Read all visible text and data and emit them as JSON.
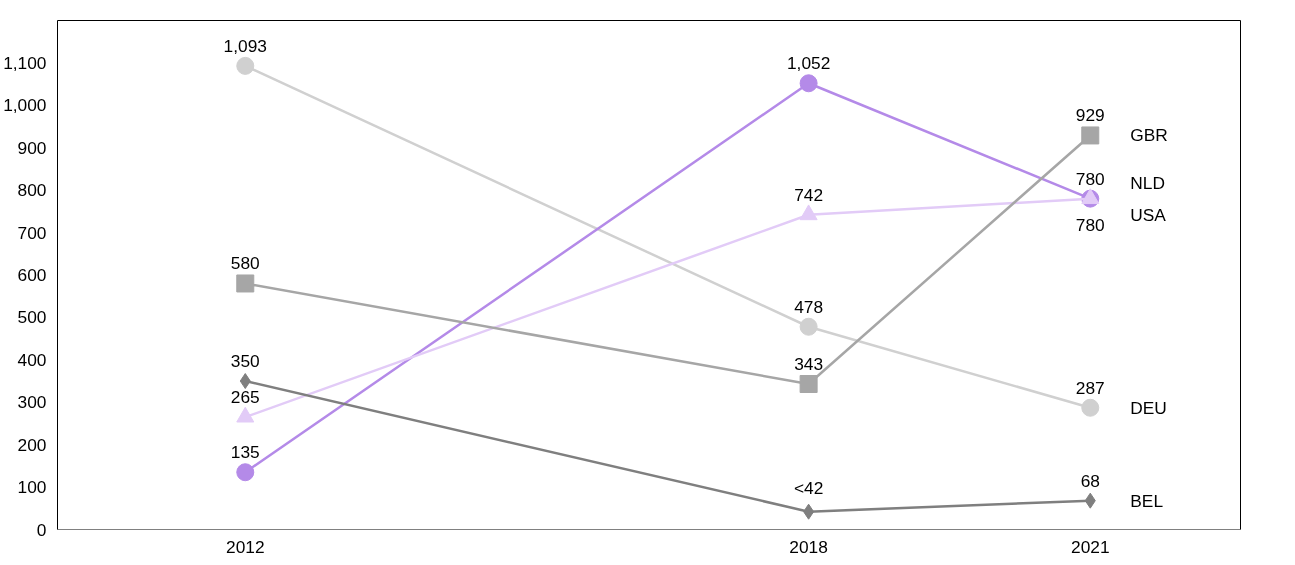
{
  "chart_data": {
    "type": "line",
    "x": [
      2012,
      2018,
      2021
    ],
    "xlim": [
      2010,
      2022.6
    ],
    "xticks": [
      2012,
      2018,
      2021
    ],
    "ylim": [
      0,
      1200
    ],
    "yticks": [
      0,
      100,
      200,
      300,
      400,
      500,
      600,
      700,
      800,
      900,
      {
        "value": 1000,
        "label": "1,000"
      },
      {
        "value": 1100,
        "label": "1,100"
      }
    ],
    "grid": false,
    "legend": false,
    "data_labels": true,
    "series": [
      {
        "name": "DEU",
        "color": "#d0d0d0",
        "marker": "circle",
        "values": [
          1093,
          478,
          287
        ],
        "value_labels": [
          "1,093",
          "478",
          "287"
        ]
      },
      {
        "name": "NLD",
        "color": "#b48ae8",
        "marker": "circle",
        "values": [
          135,
          1052,
          780
        ],
        "value_labels": [
          "135",
          "1,052",
          "780"
        ]
      },
      {
        "name": "USA",
        "color": "#e2cbf7",
        "marker": "triangle",
        "values": [
          265,
          742,
          780
        ],
        "value_labels": [
          "265",
          "742",
          "780"
        ]
      },
      {
        "name": "GBR",
        "color": "#a6a6a6",
        "marker": "square",
        "values": [
          580,
          343,
          929
        ],
        "value_labels": [
          "580",
          "343",
          "929"
        ]
      },
      {
        "name": "BEL",
        "color": "#7f7f7f",
        "marker": "diamond",
        "values": [
          350,
          42,
          68
        ],
        "value_labels": [
          "350",
          "<42",
          "68"
        ]
      }
    ]
  }
}
